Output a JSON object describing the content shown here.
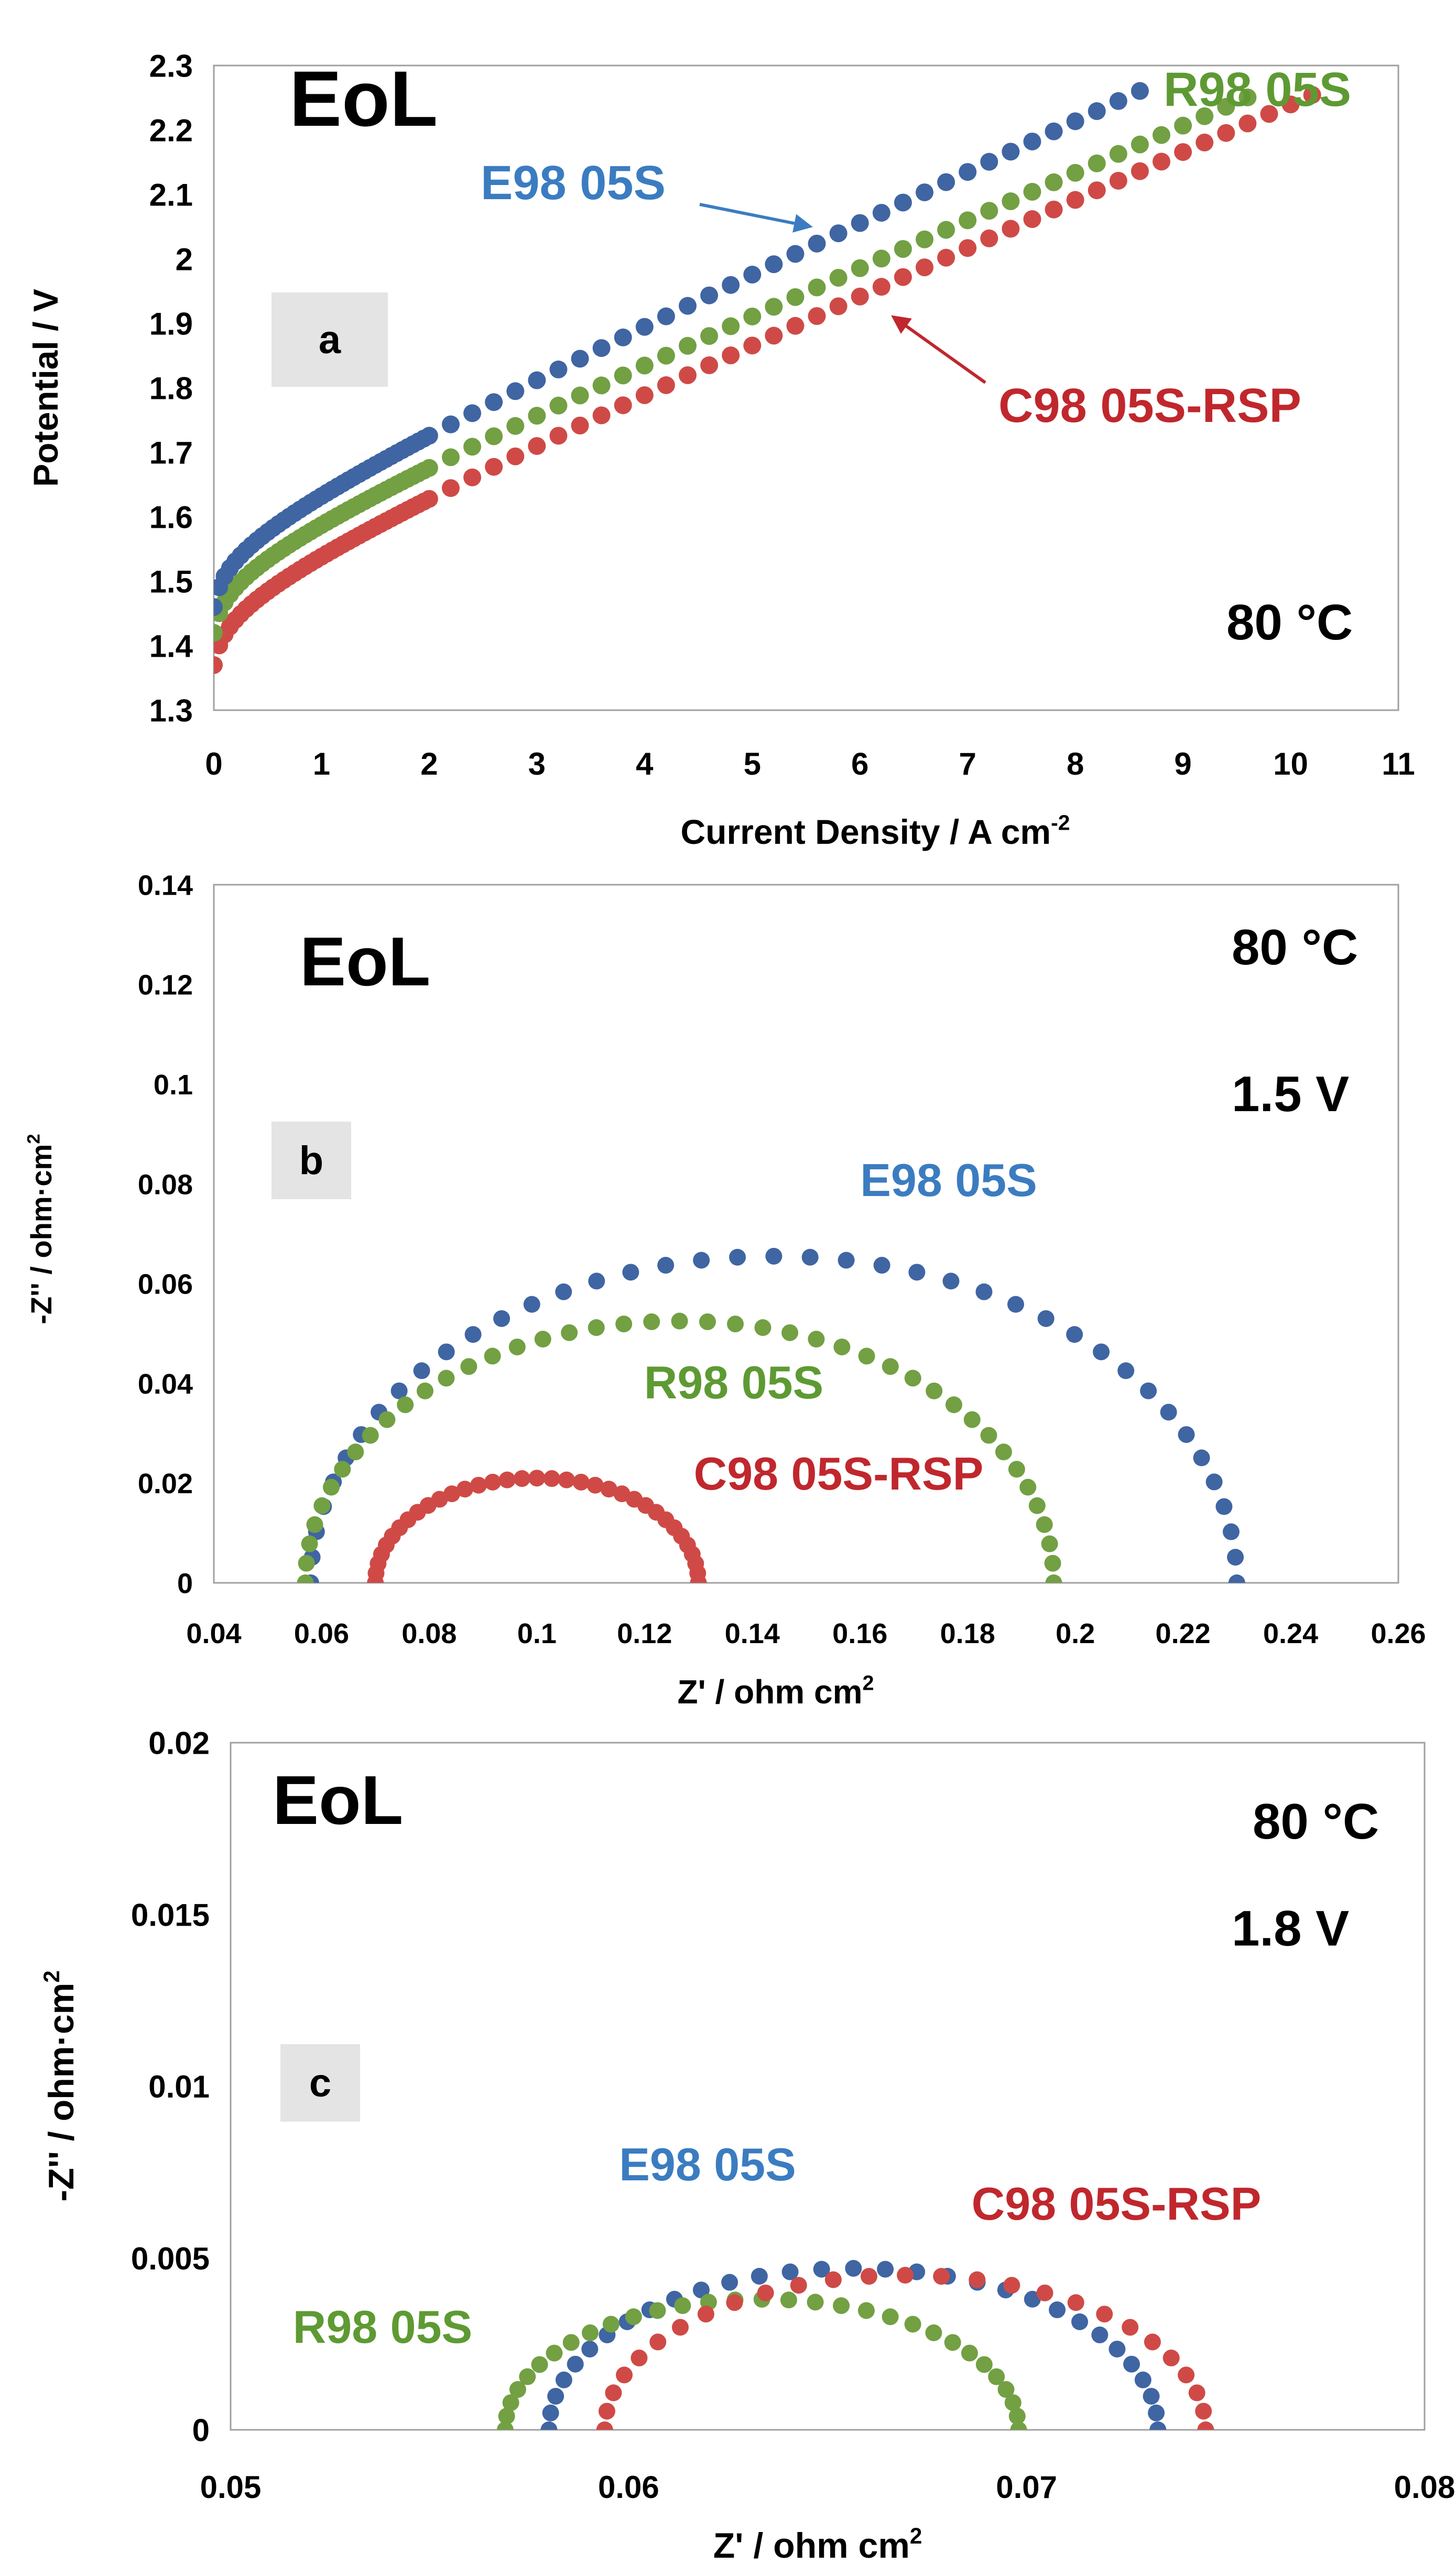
{
  "colors": {
    "blue": "#3f65a3",
    "green": "#72a043",
    "red": "#cf4a46",
    "blue_label": "#3b7cc1",
    "green_label": "#5e9a33",
    "red_label": "#c0272d",
    "axis": "#a0a0a0",
    "tag_bg": "#e4e4e4"
  },
  "chart_data": [
    {
      "id": "a",
      "type": "scatter",
      "panel_tag": "a",
      "title": "EoL",
      "condition": [
        "80 °C"
      ],
      "xlabel": "Current Density / A cm",
      "xlabel_sup": "-2",
      "ylabel": "Potential / V",
      "xlim": [
        0,
        11
      ],
      "ylim": [
        1.3,
        2.3
      ],
      "xticks": [
        "0",
        "1",
        "2",
        "3",
        "4",
        "5",
        "6",
        "7",
        "8",
        "9",
        "10",
        "11"
      ],
      "yticks": [
        "1.3",
        "1.4",
        "1.5",
        "1.6",
        "1.7",
        "1.8",
        "1.9",
        "2",
        "2.1",
        "2.2",
        "2.3"
      ],
      "series": [
        {
          "name": "E98 05S",
          "color": "blue",
          "label": "E98 05S",
          "curve": {
            "kind": "polarization",
            "a": 1.46,
            "b": 0.115,
            "c": 0.075,
            "x_end": 8.6
          }
        },
        {
          "name": "R98 05S",
          "color": "green",
          "label": "R98 05S",
          "curve": {
            "kind": "polarization",
            "a": 1.42,
            "b": 0.115,
            "c": 0.07,
            "x_end": 9.6
          }
        },
        {
          "name": "C98 05S-RSP",
          "color": "red",
          "label": "C98 05S-RSP",
          "curve": {
            "kind": "polarization",
            "a": 1.37,
            "b": 0.115,
            "c": 0.071,
            "x_end": 10.2
          }
        }
      ]
    },
    {
      "id": "b",
      "type": "scatter",
      "panel_tag": "b",
      "title": "EoL",
      "condition": [
        "80 °C",
        "1.5 V"
      ],
      "xlabel": "Z' / ohm cm",
      "xlabel_sup": "2",
      "ylabel": "-Z'' / ohm·cm",
      "ylabel_sup": "2",
      "xlim": [
        0.04,
        0.26
      ],
      "ylim": [
        0,
        0.14
      ],
      "xticks": [
        "0.04",
        "0.06",
        "0.08",
        "0.1",
        "0.12",
        "0.14",
        "0.16",
        "0.18",
        "0.2",
        "0.22",
        "0.24",
        "0.26"
      ],
      "yticks": [
        "0",
        "0.02",
        "0.04",
        "0.06",
        "0.08",
        "0.1",
        "0.12",
        "0.14"
      ],
      "series": [
        {
          "name": "E98 05S",
          "color": "blue",
          "label": "E98 05S",
          "curve": {
            "kind": "arc",
            "x0": 0.058,
            "x1": 0.23,
            "h": 0.0655,
            "n": 40
          }
        },
        {
          "name": "R98 05S",
          "color": "green",
          "label": "R98 05S",
          "curve": {
            "kind": "arc",
            "x0": 0.057,
            "x1": 0.196,
            "h": 0.0525,
            "n": 42
          }
        },
        {
          "name": "C98 05S-RSP",
          "color": "red",
          "label": "C98 05S-RSP",
          "curve": {
            "kind": "arc",
            "x0": 0.07,
            "x1": 0.13,
            "h": 0.021,
            "n": 34
          }
        }
      ]
    },
    {
      "id": "c",
      "type": "scatter",
      "panel_tag": "c",
      "title": "EoL",
      "condition": [
        "80 °C",
        "1.8 V"
      ],
      "xlabel": "Z' / ohm cm",
      "xlabel_sup": "2",
      "ylabel": "-Z'' / ohm·cm",
      "ylabel_sup": "2",
      "xlim": [
        0.05,
        0.08
      ],
      "ylim": [
        0,
        0.02
      ],
      "xticks": [
        "0.05",
        "0.06",
        "0.07",
        "0.08"
      ],
      "yticks": [
        "0",
        "0.005",
        "0.01",
        "0.015",
        "0.02"
      ],
      "series": [
        {
          "name": "E98 05S",
          "color": "blue",
          "label": "E98 05S",
          "curve": {
            "kind": "arc",
            "x0": 0.058,
            "x1": 0.0733,
            "h": 0.0047,
            "n": 30
          }
        },
        {
          "name": "R98 05S",
          "color": "green",
          "label": "R98 05S",
          "curve": {
            "kind": "arc",
            "x0": 0.0569,
            "x1": 0.0698,
            "h": 0.0038,
            "n": 30
          }
        },
        {
          "name": "C98 05S-RSP",
          "color": "red",
          "label": "C98 05S-RSP",
          "curve": {
            "kind": "arc",
            "x0": 0.0594,
            "x1": 0.0745,
            "h": 0.0045,
            "n": 26
          }
        }
      ]
    }
  ]
}
